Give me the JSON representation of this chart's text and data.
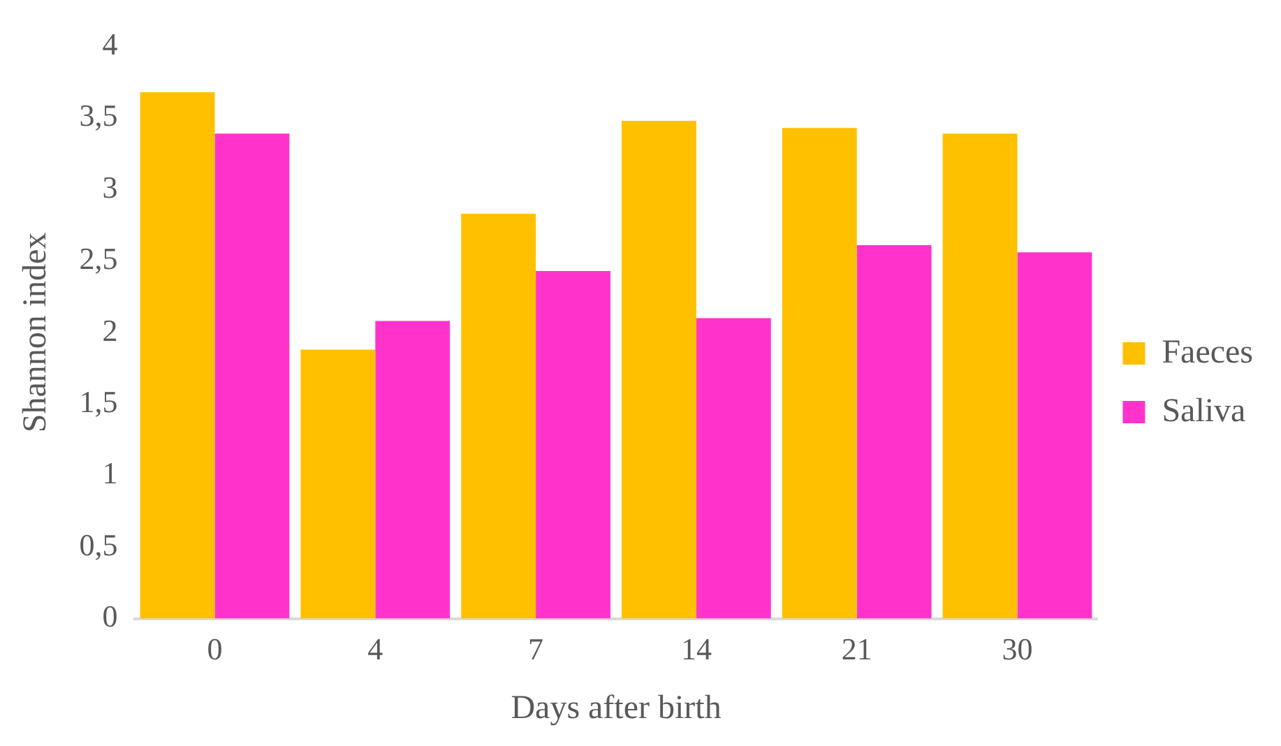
{
  "chart_data": {
    "type": "bar",
    "xlabel": "Days after birth",
    "ylabel": "Shannon index",
    "categories": [
      "0",
      "4",
      "7",
      "14",
      "21",
      "30"
    ],
    "series": [
      {
        "name": "Faeces",
        "color": "#ffc000",
        "values": [
          3.68,
          1.88,
          2.83,
          3.48,
          3.43,
          3.39
        ]
      },
      {
        "name": "Saliva",
        "color": "#ff33cc",
        "values": [
          3.39,
          2.08,
          2.43,
          2.1,
          2.61,
          2.56
        ]
      }
    ],
    "ylim": [
      0,
      4
    ],
    "yticks": [
      0,
      {
        "value": 0.5,
        "label": "0,5"
      },
      1,
      {
        "value": 1.5,
        "label": "1,5"
      },
      2,
      {
        "value": 2.5,
        "label": "2,5"
      },
      3,
      {
        "value": 3.5,
        "label": "3,5"
      },
      4
    ],
    "grid": false,
    "legend": "right"
  }
}
